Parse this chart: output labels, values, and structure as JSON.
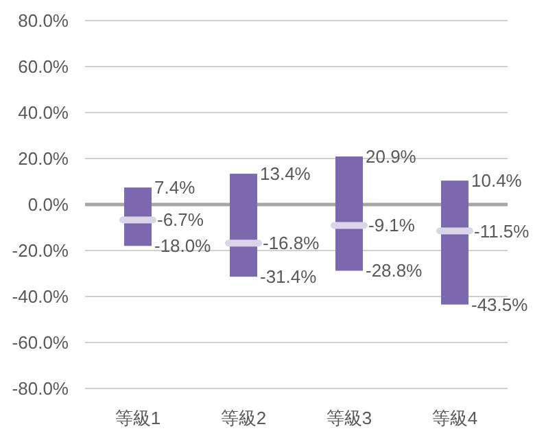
{
  "chart_data": {
    "type": "box",
    "categories": [
      "等級1",
      "等級2",
      "等級3",
      "等級4"
    ],
    "series": [
      {
        "color": "#7b68ae",
        "boxes": [
          {
            "low": -18.0,
            "q1": -18.0,
            "median": -6.7,
            "q3": 7.4,
            "high": 7.4
          },
          {
            "low": -31.4,
            "q1": -31.4,
            "median": -16.8,
            "q3": 13.4,
            "high": 13.4
          },
          {
            "low": -28.8,
            "q1": -28.8,
            "median": -9.1,
            "q3": 20.9,
            "high": 20.9
          },
          {
            "low": -43.5,
            "q1": -43.5,
            "median": -11.5,
            "q3": 10.4,
            "high": 10.4
          }
        ]
      }
    ],
    "annotations": [
      {
        "text": "7.4%",
        "x": "等級1",
        "y": 7.4
      },
      {
        "text": "13.4%",
        "x": "等級2",
        "y": 13.4
      },
      {
        "text": "20.9%",
        "x": "等級3",
        "y": 20.9
      },
      {
        "text": "10.4%",
        "x": "等級4",
        "y": 10.4
      },
      {
        "text": "-6.7%",
        "x": "等級1",
        "y": -6.7
      },
      {
        "text": "-16.8%",
        "x": "等級2",
        "y": -16.8
      },
      {
        "text": "-9.1%",
        "x": "等級3",
        "y": -9.1
      },
      {
        "text": "-11.5%",
        "x": "等級4",
        "y": -11.5
      },
      {
        "text": "-18.0%",
        "x": "等級1",
        "y": -18.0
      },
      {
        "text": "-31.4%",
        "x": "等級2",
        "y": -31.4
      },
      {
        "text": "-28.8%",
        "x": "等級3",
        "y": -28.8
      },
      {
        "text": "-43.5%",
        "x": "等級4",
        "y": -43.5
      }
    ],
    "ylim": [
      -80,
      80
    ],
    "yticks": [
      {
        "value": -80,
        "label": "-80.0%"
      },
      {
        "value": -60,
        "label": "-60.0%"
      },
      {
        "value": -40,
        "label": "-40.0%"
      },
      {
        "value": -20,
        "label": "-20.0%"
      },
      {
        "value": 0,
        "label": "0.0%"
      },
      {
        "value": 20,
        "label": "20.0%"
      },
      {
        "value": 40,
        "label": "40.0%"
      },
      {
        "value": 60,
        "label": "60.0%"
      },
      {
        "value": 80,
        "label": "80.0%"
      }
    ],
    "ref_lines": [
      {
        "axis": "y",
        "value": 0,
        "color": "#a6a6a6"
      }
    ],
    "grid": "y"
  }
}
